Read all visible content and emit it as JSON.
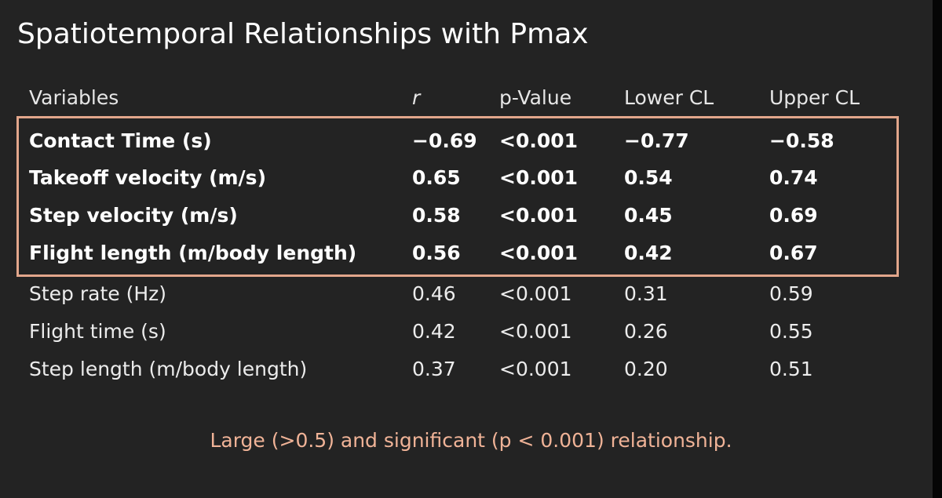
{
  "title": "Spatiotemporal Relationships with Pmax",
  "table": {
    "headers": [
      "Variables",
      "r",
      "p-Value",
      "Lower CL",
      "Upper CL"
    ],
    "rows": [
      [
        "Contact Time (s)",
        "−0.69",
        "<0.001",
        "−0.77",
        "−0.58"
      ],
      [
        "Takeoff velocity (m/s)",
        "0.65",
        "<0.001",
        "0.54",
        "0.74"
      ],
      [
        "Step velocity (m/s)",
        "0.58",
        "<0.001",
        "0.45",
        "0.69"
      ],
      [
        "Flight length (m/body length)",
        "0.56",
        "<0.001",
        "0.42",
        "0.67"
      ],
      [
        "Step rate (Hz)",
        "0.46",
        "<0.001",
        "0.31",
        "0.59"
      ],
      [
        "Flight time (s)",
        "0.42",
        "<0.001",
        "0.26",
        "0.55"
      ],
      [
        "Step length (m/body length)",
        "0.37",
        "<0.001",
        "0.20",
        "0.51"
      ]
    ]
  },
  "footnote": "Large (>0.5) and significant (p < 0.001) relationship.",
  "colors": {
    "background": "#232323",
    "highlight": "#e2a68b",
    "footnote": "#f0b397"
  }
}
